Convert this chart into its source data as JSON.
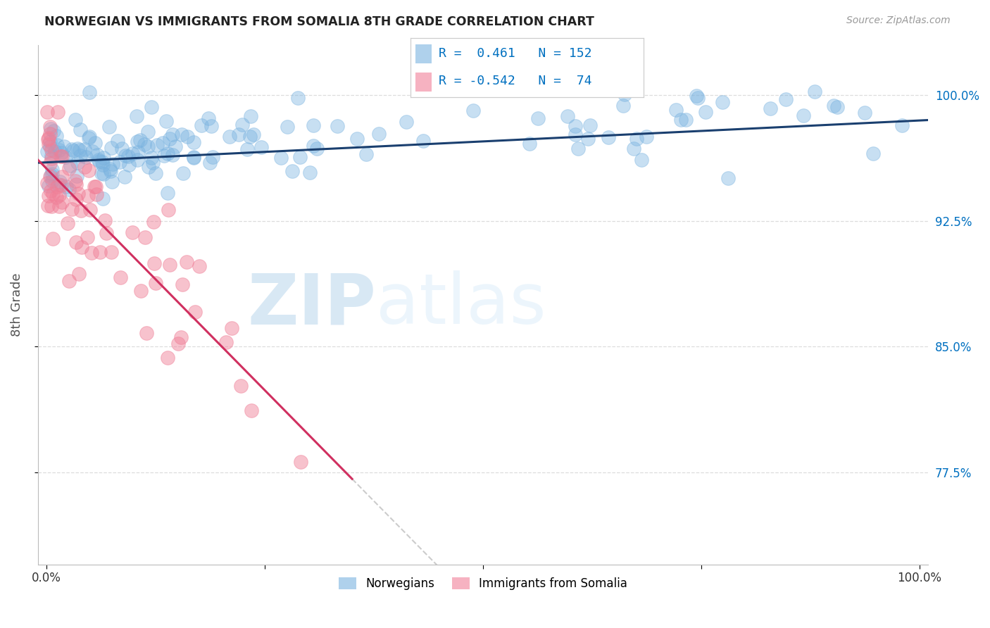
{
  "title": "NORWEGIAN VS IMMIGRANTS FROM SOMALIA 8TH GRADE CORRELATION CHART",
  "source": "Source: ZipAtlas.com",
  "ylabel": "8th Grade",
  "y_ticks": [
    77.5,
    85.0,
    92.5,
    100.0
  ],
  "ylim": [
    72.0,
    103.0
  ],
  "xlim": [
    -1,
    101
  ],
  "legend_norwegian": "Norwegians",
  "legend_somalia": "Immigrants from Somalia",
  "r_norwegian": 0.461,
  "n_norwegian": 152,
  "r_somalia": -0.542,
  "n_somalia": 74,
  "blue_color": "#7ab3e0",
  "pink_color": "#f08098",
  "blue_line_color": "#1a3f6f",
  "pink_line_color": "#d03060",
  "dashed_line_color": "#cccccc",
  "watermark_zip": "ZIP",
  "watermark_atlas": "atlas",
  "background_color": "#ffffff",
  "grid_color": "#dddddd",
  "title_color": "#222222",
  "axis_label_color": "#555555",
  "right_tick_color": "#0070c0",
  "legend_box_color": "#0070c0"
}
